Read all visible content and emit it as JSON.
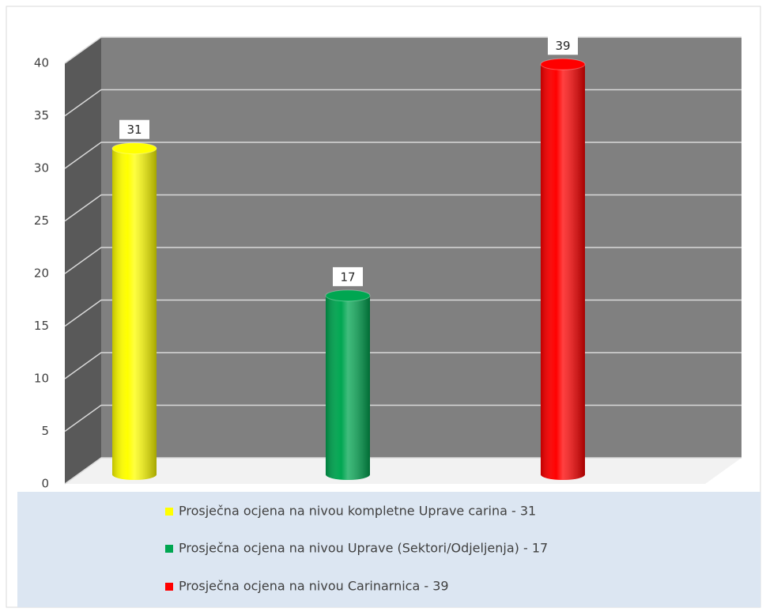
{
  "chart_data": {
    "type": "bar",
    "series": [
      {
        "name": "Prosječna ocjena na nivou kompletne Uprave carina - 31",
        "color": "#ffff00",
        "values": [
          31
        ]
      },
      {
        "name": "Prosječna ocjena na nivou Uprave (Sektori/Odjeljenja) - 17",
        "color": "#00a651",
        "values": [
          17
        ]
      },
      {
        "name": "Prosječna ocjena na nivou Carinarnica - 39",
        "color": "#ff0000",
        "values": [
          39
        ]
      }
    ],
    "ylim": [
      0,
      40
    ],
    "yticks": [
      0,
      5,
      10,
      15,
      20,
      25,
      30,
      35,
      40
    ],
    "grid": true,
    "legend": "bottom"
  }
}
